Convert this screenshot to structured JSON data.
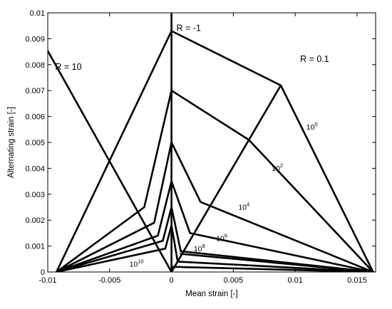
{
  "chart_data": {
    "type": "line",
    "title": "",
    "xlabel": "Mean strain [-]",
    "ylabel": "Alternating strain [-]",
    "xlim": [
      -0.01,
      0.0165
    ],
    "ylim": [
      0,
      0.01
    ],
    "x_ticks": [
      {
        "value": -0.01,
        "label": "-0.01"
      },
      {
        "value": -0.005,
        "label": "-0.005"
      },
      {
        "value": 0,
        "label": "0"
      },
      {
        "value": 0.005,
        "label": "0.005"
      },
      {
        "value": 0.01,
        "label": "0.01"
      },
      {
        "value": 0.015,
        "label": "0.015"
      }
    ],
    "y_ticks": [
      {
        "value": 0,
        "label": "0"
      },
      {
        "value": 0.001,
        "label": "0.001"
      },
      {
        "value": 0.002,
        "label": "0.002"
      },
      {
        "value": 0.003,
        "label": "0.003"
      },
      {
        "value": 0.004,
        "label": "0.004"
      },
      {
        "value": 0.005,
        "label": "0.005"
      },
      {
        "value": 0.006,
        "label": "0.006"
      },
      {
        "value": 0.007,
        "label": "0.007"
      },
      {
        "value": 0.008,
        "label": "0.008"
      },
      {
        "value": 0.009,
        "label": "0.009"
      },
      {
        "value": 0.01,
        "label": "0.01"
      }
    ],
    "grid": false,
    "legend": "none",
    "ratio_lines": [
      {
        "label": "R = 10",
        "x": [
          -0.0109,
          0
        ],
        "y": [
          0.0093,
          0
        ]
      },
      {
        "label": "R = -1",
        "x": [
          0,
          0
        ],
        "y": [
          0,
          0.01
        ]
      },
      {
        "label": "R = 0.1",
        "x": [
          0,
          0.00884
        ],
        "y": [
          0,
          0.0072
        ]
      }
    ],
    "series": [
      {
        "label_base": "10",
        "label_exp": "0",
        "x": [
          -0.0093,
          0,
          0.00884,
          0.0163
        ],
        "y": [
          0,
          0.0093,
          0.0072,
          0
        ]
      },
      {
        "label_base": "10",
        "label_exp": "2",
        "x": [
          -0.0093,
          -0.0022,
          0,
          0.00625,
          0.0163
        ],
        "y": [
          0,
          0.0025,
          0.007,
          0.0051,
          0
        ]
      },
      {
        "label_base": "10",
        "label_exp": "4",
        "x": [
          -0.0093,
          -0.0014,
          0,
          0.00235,
          0.0163
        ],
        "y": [
          0,
          0.0019,
          0.005,
          0.0027,
          0
        ]
      },
      {
        "label_base": "10",
        "label_exp": "6",
        "x": [
          -0.0093,
          -0.0011,
          0,
          0.0015,
          0.0163
        ],
        "y": [
          0,
          0.0014,
          0.0035,
          0.0015,
          0
        ]
      },
      {
        "label_base": "10",
        "label_exp": "8",
        "x": [
          -0.0093,
          -0.0007,
          0,
          0.00075,
          0.0163
        ],
        "y": [
          0,
          0.0012,
          0.0025,
          0.0008,
          0
        ]
      },
      {
        "label_base": "10",
        "label_exp": "10",
        "x": [
          -0.0093,
          -0.0005,
          0,
          0.0005,
          0.0163
        ],
        "y": [
          0,
          0.0009,
          0.0018,
          0.0004,
          0
        ]
      }
    ],
    "extra_lines": [
      {
        "x": [
          0,
          0.0163
        ],
        "y": [
          0.0002,
          0
        ]
      },
      {
        "x": [
          0.00075,
          0.0163
        ],
        "y": [
          0.0007,
          0
        ]
      }
    ],
    "annotations": [
      {
        "key": "r10",
        "text": "R = 10",
        "x": -0.0094,
        "y": 0.0078
      },
      {
        "key": "rm1",
        "text": "R = -1",
        "x": 0.0004,
        "y": 0.0093
      },
      {
        "key": "r01",
        "text": "R = 0.1",
        "x": 0.0104,
        "y": 0.0081
      }
    ],
    "n_labels": [
      {
        "base": "10",
        "exp": "0",
        "x": 0.0109,
        "y": 0.0055
      },
      {
        "base": "10",
        "exp": "2",
        "x": 0.0081,
        "y": 0.0039
      },
      {
        "base": "10",
        "exp": "4",
        "x": 0.0054,
        "y": 0.0024
      },
      {
        "base": "10",
        "exp": "6",
        "x": 0.0036,
        "y": 0.0012
      },
      {
        "base": "10",
        "exp": "8",
        "x": 0.0018,
        "y": 0.0008
      },
      {
        "base": "10",
        "exp": "10",
        "x": -0.0034,
        "y": 0.0002
      }
    ]
  }
}
